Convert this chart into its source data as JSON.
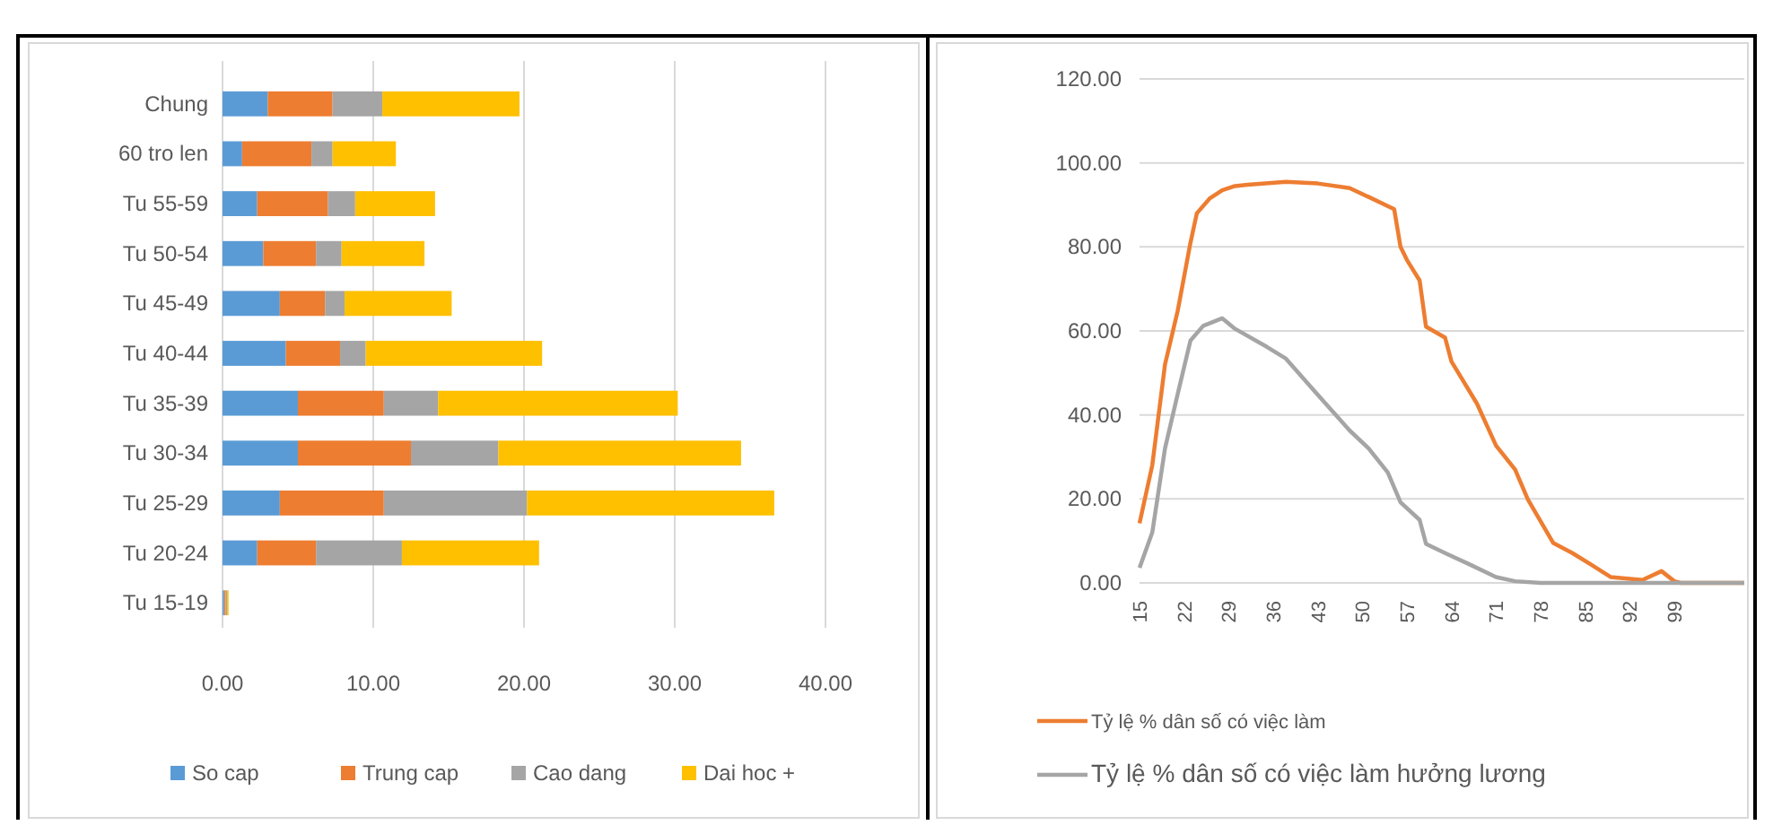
{
  "chart_data": [
    {
      "type": "bar",
      "orientation": "horizontal",
      "stacked": true,
      "categories": [
        "Chung",
        "60 tro len",
        "Tu 55-59",
        "Tu 50-54",
        "Tu 45-49",
        "Tu 40-44",
        "Tu 35-39",
        "Tu 30-34",
        "Tu 25-29",
        "Tu 20-24",
        "Tu 15-19"
      ],
      "series": [
        {
          "name": "So cap",
          "color": "#5b9bd5",
          "values": [
            3.0,
            1.3,
            2.3,
            2.7,
            3.8,
            4.2,
            5.0,
            5.0,
            3.8,
            2.3,
            0.1
          ]
        },
        {
          "name": "Trung cap",
          "color": "#ed7d31",
          "values": [
            4.3,
            4.6,
            4.7,
            3.5,
            3.0,
            3.6,
            5.7,
            7.5,
            6.9,
            3.9,
            0.1
          ]
        },
        {
          "name": "Cao dang",
          "color": "#a5a5a5",
          "values": [
            3.3,
            1.4,
            1.8,
            1.7,
            1.3,
            1.7,
            3.6,
            5.8,
            9.5,
            5.7,
            0.1
          ]
        },
        {
          "name": "Dai hoc +",
          "color": "#ffc000",
          "values": [
            9.1,
            4.2,
            5.3,
            5.5,
            7.1,
            11.7,
            15.9,
            16.1,
            16.4,
            9.1,
            0.1
          ]
        }
      ],
      "xlim": [
        0,
        40
      ],
      "xticks": [
        {
          "value": 0,
          "label": "0.00"
        },
        {
          "value": 10,
          "label": "10.00"
        },
        {
          "value": 20,
          "label": "20.00"
        },
        {
          "value": 30,
          "label": "30.00"
        },
        {
          "value": 40,
          "label": "40.00"
        }
      ],
      "grid": "x",
      "legend": "bottom"
    },
    {
      "type": "line",
      "xlim": [
        15,
        110
      ],
      "xticks": [
        15,
        22,
        29,
        36,
        43,
        50,
        57,
        64,
        71,
        78,
        85,
        92,
        99
      ],
      "ylim": [
        0,
        120
      ],
      "yticks": [
        {
          "value": 0,
          "label": "0.00"
        },
        {
          "value": 20,
          "label": "20.00"
        },
        {
          "value": 40,
          "label": "40.00"
        },
        {
          "value": 60,
          "label": "60.00"
        },
        {
          "value": 80,
          "label": "80.00"
        },
        {
          "value": 100,
          "label": "100.00"
        },
        {
          "value": 120,
          "label": "120.00"
        }
      ],
      "series": [
        {
          "name": "Tỷ lệ % dân số có việc làm",
          "color": "#ed7d31",
          "x": [
            15,
            17,
            19,
            21,
            23,
            24,
            26,
            28,
            30,
            32,
            38,
            43,
            48,
            51,
            55,
            56,
            57,
            59,
            60,
            63,
            64,
            68,
            71,
            74,
            76,
            80,
            83,
            86,
            89,
            94,
            97,
            99,
            100,
            110
          ],
          "values": [
            14.2,
            28,
            52,
            64.8,
            81,
            88,
            91.5,
            93.5,
            94.5,
            94.8,
            95.5,
            95.1,
            94,
            91.9,
            89,
            80,
            76.9,
            72,
            61,
            58.4,
            52.7,
            42.7,
            32.7,
            27,
            19.9,
            9.5,
            7.1,
            4.3,
            1.4,
            0.7,
            2.8,
            0.4,
            0,
            0
          ]
        },
        {
          "name": "Tỷ lệ % dân số có việc làm hưởng lương",
          "color": "#a5a5a5",
          "x": [
            15,
            17,
            19,
            21,
            23,
            25,
            28,
            30,
            35,
            38,
            43,
            48,
            51,
            54,
            56,
            59,
            60,
            63,
            67,
            71,
            74,
            78,
            110
          ],
          "values": [
            3.6,
            12,
            32,
            45,
            57.7,
            61.2,
            63,
            60.5,
            56.2,
            53.4,
            44.8,
            36.3,
            32,
            26.3,
            19.2,
            15,
            9.3,
            7.1,
            4.3,
            1.4,
            0.4,
            0,
            0
          ]
        }
      ],
      "grid": "y",
      "legend": "bottom",
      "marker": "none",
      "line_style": "solid"
    }
  ]
}
